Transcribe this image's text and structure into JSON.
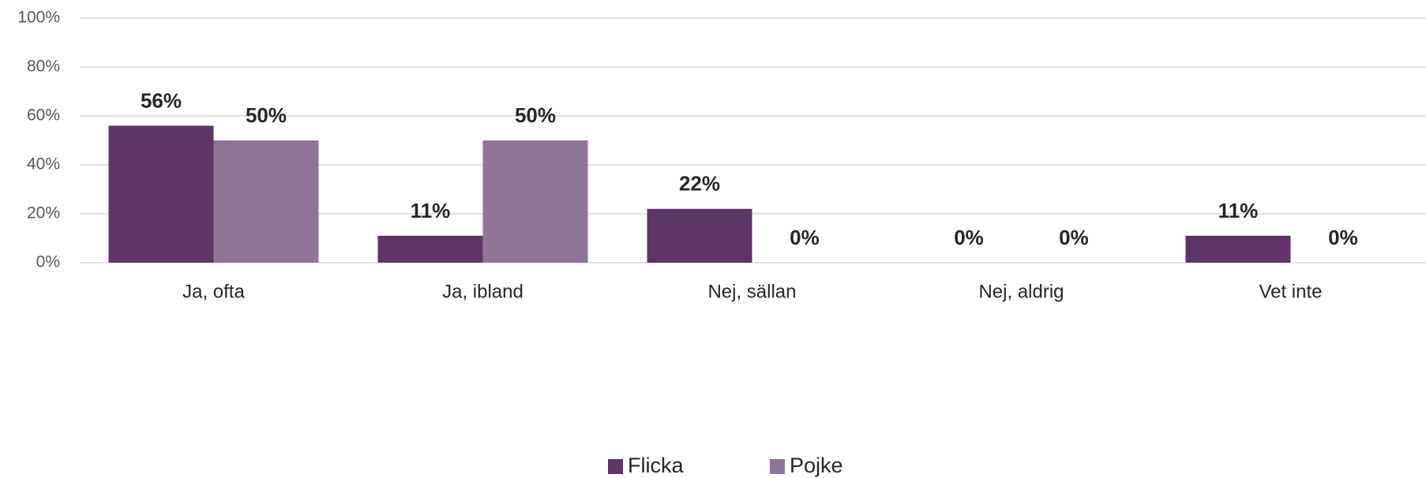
{
  "chart_data": {
    "type": "bar",
    "categories": [
      "Ja, ofta",
      "Ja, ibland",
      "Nej, sällan",
      "Nej, aldrig",
      "Vet inte"
    ],
    "series": [
      {
        "name": "Flicka",
        "color": "#5e3469",
        "values": [
          56,
          11,
          22,
          0,
          11
        ],
        "value_labels": [
          "56%",
          "11%",
          "22%",
          "0%",
          "11%"
        ]
      },
      {
        "name": "Pojke",
        "color": "#917599",
        "values": [
          50,
          50,
          0,
          0,
          0
        ],
        "value_labels": [
          "50%",
          "50%",
          "0%",
          "0%",
          "0%"
        ]
      }
    ],
    "ylim": [
      0,
      100
    ],
    "yticks": [
      {
        "value": 0,
        "label": "0%"
      },
      {
        "value": 20,
        "label": "20%"
      },
      {
        "value": 40,
        "label": "40%"
      },
      {
        "value": 60,
        "label": "60%"
      },
      {
        "value": 80,
        "label": "80%"
      },
      {
        "value": 100,
        "label": "100%"
      }
    ],
    "grid": true,
    "legend": "bottom"
  }
}
